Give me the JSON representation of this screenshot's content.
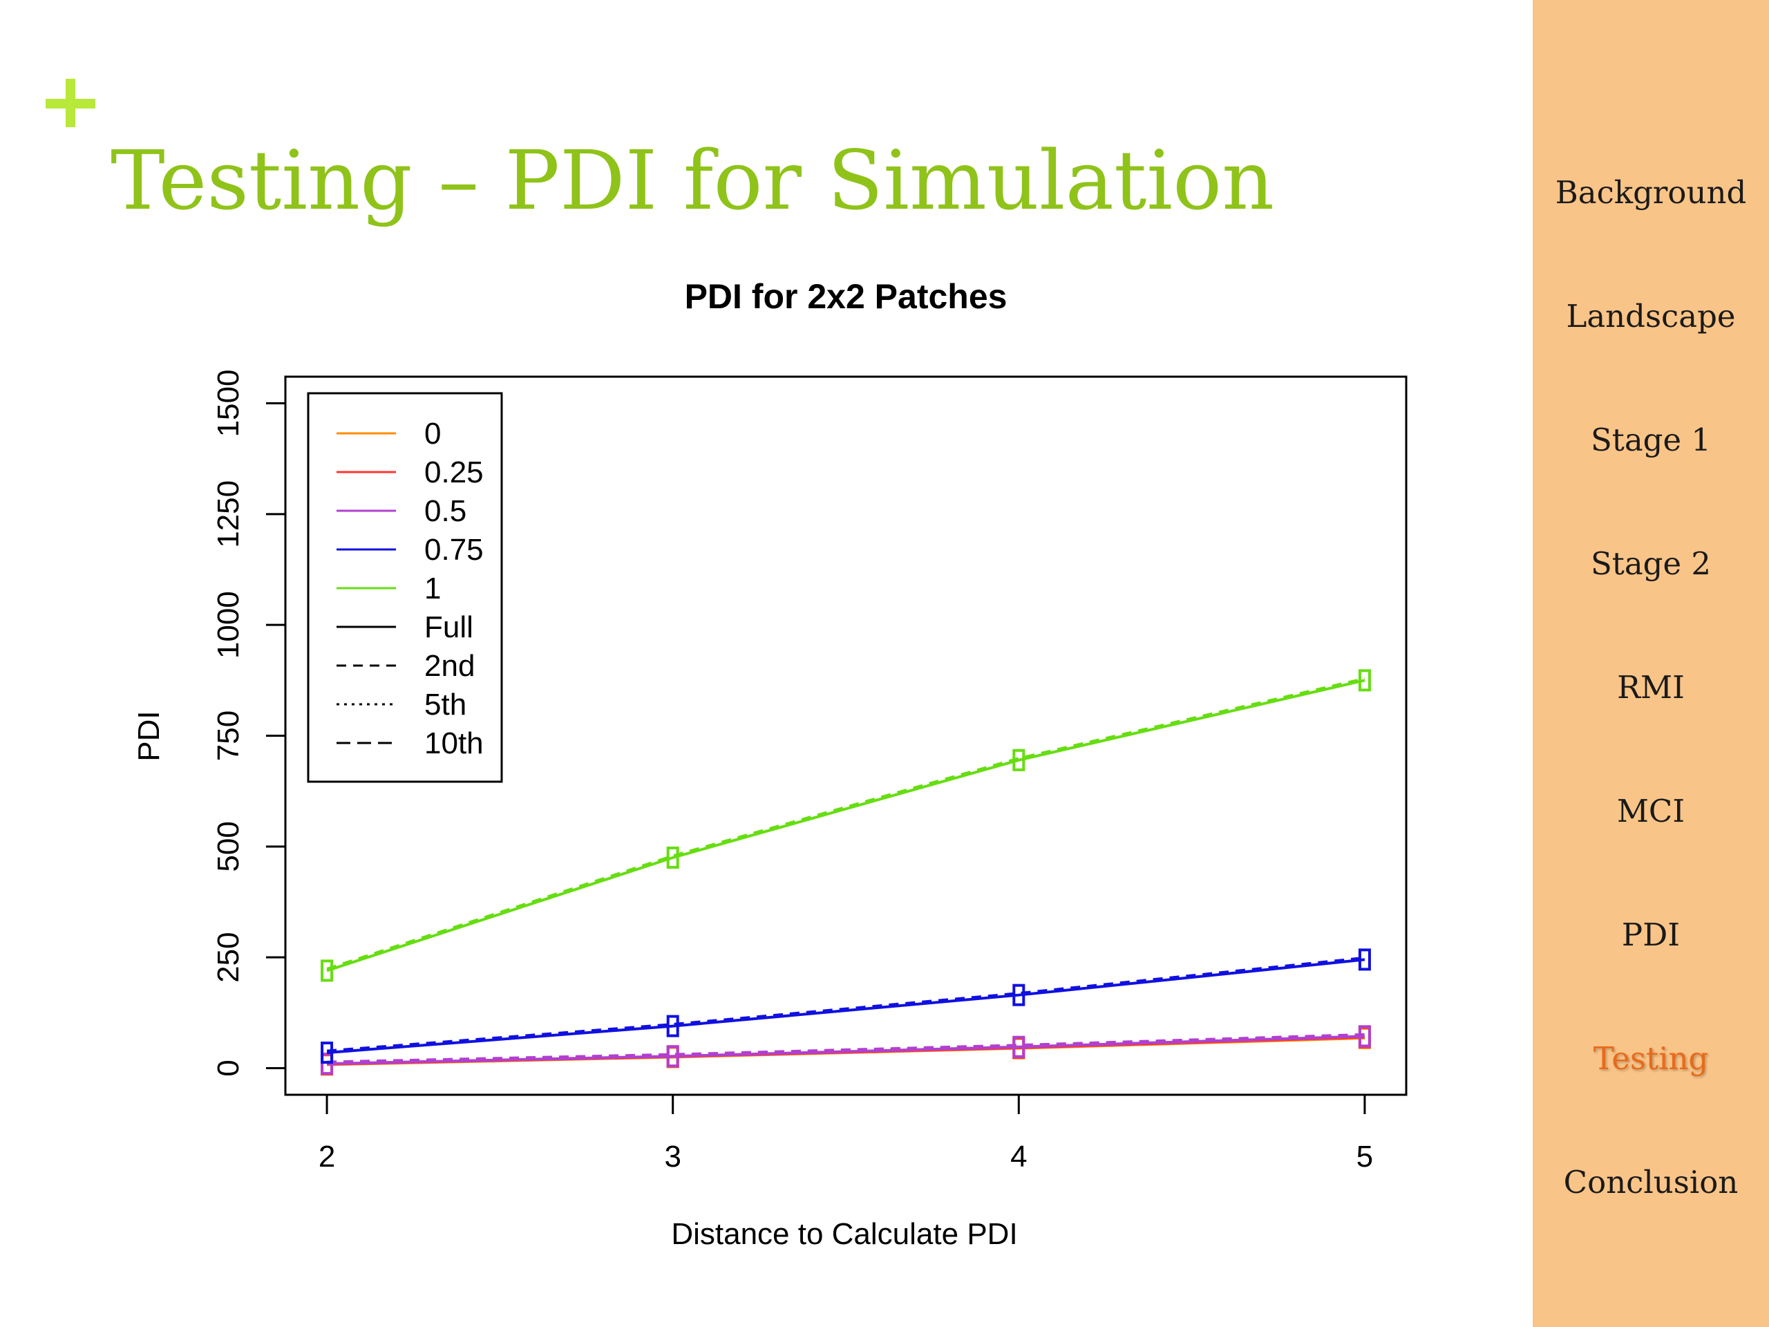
{
  "slide": {
    "title": "Testing – PDI for Simulation",
    "title_color": "#8fc31a",
    "accent_plus_color": "#b8e83a"
  },
  "sidebar": {
    "background": "#f9c487",
    "items": [
      {
        "label": "Background",
        "active": false
      },
      {
        "label": "Landscape",
        "active": false
      },
      {
        "label": "Stage 1",
        "active": false
      },
      {
        "label": "Stage 2",
        "active": false
      },
      {
        "label": "RMI",
        "active": false
      },
      {
        "label": "MCI",
        "active": false
      },
      {
        "label": "PDI",
        "active": false
      },
      {
        "label": "Testing",
        "active": true
      },
      {
        "label": "Conclusion",
        "active": false
      }
    ],
    "active_color": "#e86a1c"
  },
  "chart_data": {
    "type": "line",
    "title": "PDI for 2x2 Patches",
    "xlabel": "Distance to Calculate PDI",
    "ylabel": "PDI",
    "x": [
      2,
      3,
      4,
      5
    ],
    "xticks": [
      "2",
      "3",
      "4",
      "5"
    ],
    "yticks": [
      "0",
      "250",
      "500",
      "750",
      "1000",
      "1250",
      "1500"
    ],
    "xlim": [
      1.88,
      5.12
    ],
    "ylim": [
      -60,
      1560
    ],
    "grid": false,
    "legend_position": "top-left",
    "series": [
      {
        "name": "0",
        "color": "#ff8c00",
        "values": [
          8,
          25,
          45,
          68
        ]
      },
      {
        "name": "0.25",
        "color": "#ff3333",
        "values": [
          9,
          26,
          46,
          70
        ]
      },
      {
        "name": "0.5",
        "color": "#b040d0",
        "values": [
          10,
          27,
          48,
          72
        ]
      },
      {
        "name": "0.75",
        "color": "#1010e0",
        "values": [
          35,
          95,
          165,
          245
        ]
      },
      {
        "name": "1",
        "color": "#66dd11",
        "values": [
          220,
          475,
          695,
          875
        ]
      }
    ],
    "line_type_legend": [
      {
        "name": "Full",
        "dash": "solid"
      },
      {
        "name": "2nd",
        "dash": "dashed"
      },
      {
        "name": "5th",
        "dash": "dotted"
      },
      {
        "name": "10th",
        "dash": "dashed-long"
      }
    ]
  }
}
